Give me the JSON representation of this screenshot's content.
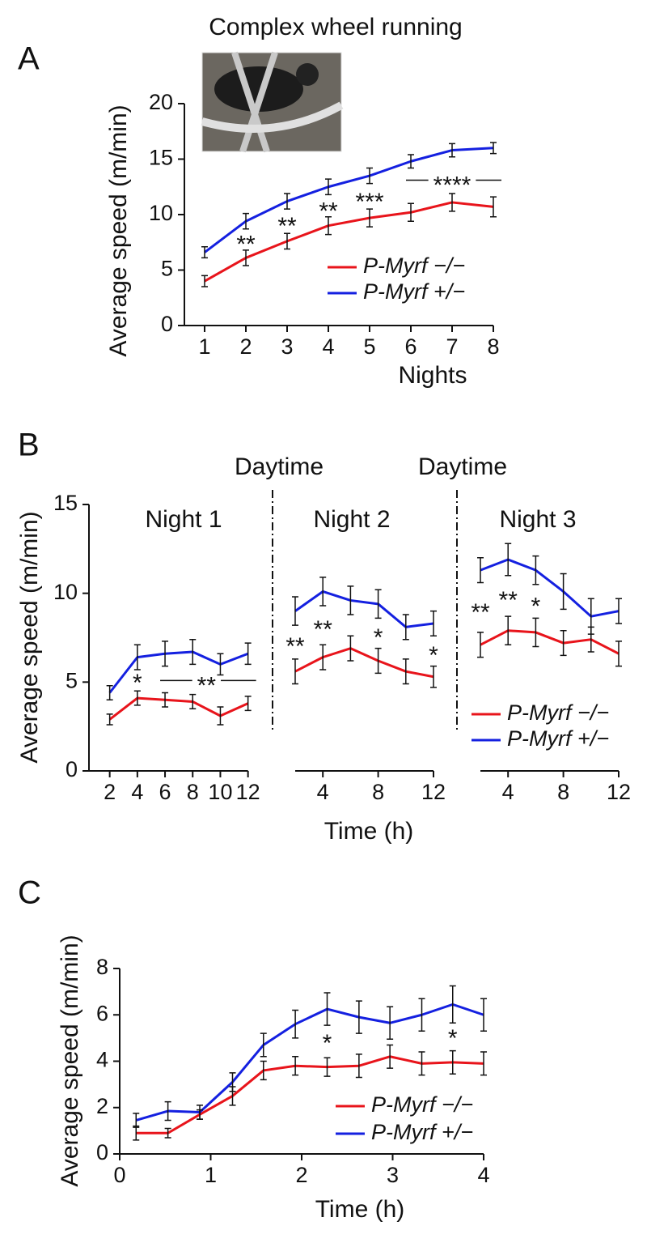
{
  "chart_data": [
    {
      "type": "line",
      "label": "A",
      "title": "Complex wheel running",
      "xlabel": "Nights",
      "ylabel": "Average speed (m/min)",
      "x": [
        1,
        2,
        3,
        4,
        5,
        6,
        7,
        8
      ],
      "xlim": [
        0.5,
        8
      ],
      "xticks": [
        1,
        2,
        3,
        4,
        5,
        6,
        7,
        8
      ],
      "ylim": [
        0,
        20
      ],
      "yticks": [
        0,
        5,
        10,
        15,
        20
      ],
      "series": [
        {
          "name": "P-Myrf −/−",
          "color": "#e8141b",
          "values": [
            4.0,
            6.1,
            7.6,
            9.0,
            9.7,
            10.2,
            11.1,
            10.7
          ],
          "errors": [
            0.5,
            0.7,
            0.7,
            0.8,
            0.8,
            0.8,
            0.8,
            0.9
          ]
        },
        {
          "name": "P-Myrf +/−",
          "color": "#1420e0",
          "values": [
            6.6,
            9.4,
            11.2,
            12.5,
            13.5,
            14.8,
            15.8,
            16.0
          ],
          "errors": [
            0.5,
            0.7,
            0.7,
            0.7,
            0.7,
            0.6,
            0.6,
            0.5
          ]
        }
      ],
      "annotations": [
        {
          "text": "**",
          "x": 2
        },
        {
          "text": "**",
          "x": 3
        },
        {
          "text": "**",
          "x": 4
        },
        {
          "text": "***",
          "x": 5
        },
        {
          "text": "****",
          "from": 6,
          "to": 8
        }
      ]
    },
    {
      "type": "line",
      "label": "B",
      "ylabel": "Average speed (m/min)",
      "xlabel": "Time (h)",
      "separators": [
        "Daytime",
        "Daytime"
      ],
      "ylim": [
        0,
        15
      ],
      "yticks": [
        0,
        5,
        10,
        15
      ],
      "series": [
        {
          "name": "P-Myrf −/−",
          "color": "#e8141b"
        },
        {
          "name": "P-Myrf +/−",
          "color": "#1420e0"
        }
      ],
      "panels": [
        {
          "title": "Night 1",
          "x": [
            2,
            4,
            6,
            8,
            10,
            12
          ],
          "xlim": [
            0.5,
            12
          ],
          "xticks": [
            2,
            4,
            6,
            8,
            10,
            12
          ],
          "series": [
            {
              "values": [
                2.9,
                4.1,
                4.0,
                3.9,
                3.1,
                3.8
              ],
              "errors": [
                0.3,
                0.4,
                0.4,
                0.4,
                0.5,
                0.4
              ]
            },
            {
              "values": [
                4.4,
                6.4,
                6.6,
                6.7,
                6.0,
                6.6
              ],
              "errors": [
                0.4,
                0.7,
                0.7,
                0.7,
                0.6,
                0.6
              ]
            }
          ],
          "annotations": [
            {
              "text": "*",
              "x": 4
            },
            {
              "text": "**",
              "from": 6,
              "to": 12
            }
          ]
        },
        {
          "title": "Night 2",
          "x": [
            2,
            4,
            6,
            8,
            10,
            12
          ],
          "xlim": [
            2,
            12
          ],
          "xticks": [
            4,
            8,
            12
          ],
          "series": [
            {
              "values": [
                5.6,
                6.4,
                6.9,
                6.2,
                5.6,
                5.3
              ],
              "errors": [
                0.7,
                0.7,
                0.7,
                0.7,
                0.7,
                0.6
              ]
            },
            {
              "values": [
                9.0,
                10.1,
                9.6,
                9.4,
                8.1,
                8.3
              ],
              "errors": [
                0.8,
                0.8,
                0.8,
                0.8,
                0.7,
                0.7
              ]
            }
          ],
          "annotations": [
            {
              "text": "**",
              "x": 2
            },
            {
              "text": "**",
              "x": 4
            },
            {
              "text": "*",
              "x": 8
            },
            {
              "text": "*",
              "x": 12
            }
          ]
        },
        {
          "title": "Night 3",
          "x": [
            2,
            4,
            6,
            8,
            10,
            12
          ],
          "xlim": [
            2,
            12
          ],
          "xticks": [
            4,
            8,
            12
          ],
          "series": [
            {
              "values": [
                7.1,
                7.9,
                7.8,
                7.2,
                7.4,
                6.6
              ],
              "errors": [
                0.7,
                0.8,
                0.8,
                0.7,
                0.7,
                0.7
              ]
            },
            {
              "values": [
                11.3,
                11.9,
                11.3,
                10.1,
                8.7,
                9.0
              ],
              "errors": [
                0.7,
                0.9,
                0.8,
                1.0,
                1.0,
                0.7
              ]
            }
          ],
          "annotations": [
            {
              "text": "**",
              "x": 2
            },
            {
              "text": "**",
              "x": 4
            },
            {
              "text": "*",
              "x": 6
            }
          ]
        }
      ]
    },
    {
      "type": "line",
      "label": "C",
      "xlabel": "Time (h)",
      "ylabel": "Average speed (m/min)",
      "x": [
        0.18,
        0.53,
        0.88,
        1.24,
        1.58,
        1.93,
        2.28,
        2.63,
        2.97,
        3.32,
        3.66,
        4.0
      ],
      "xlim": [
        0,
        4
      ],
      "xticks": [
        0,
        1,
        2,
        3,
        4
      ],
      "ylim": [
        0,
        8
      ],
      "yticks": [
        0,
        2,
        4,
        6,
        8
      ],
      "series": [
        {
          "name": "P-Myrf −/−",
          "color": "#e8141b",
          "values": [
            0.9,
            0.9,
            1.7,
            2.5,
            3.6,
            3.8,
            3.75,
            3.8,
            4.2,
            3.9,
            3.95,
            3.9
          ],
          "errors": [
            0.3,
            0.2,
            0.2,
            0.4,
            0.4,
            0.4,
            0.4,
            0.5,
            0.5,
            0.5,
            0.5,
            0.5
          ]
        },
        {
          "name": "P-Myrf +/−",
          "color": "#1420e0",
          "values": [
            1.45,
            1.85,
            1.8,
            3.1,
            4.7,
            5.6,
            6.25,
            5.9,
            5.65,
            6.0,
            6.45,
            6.0
          ],
          "errors": [
            0.3,
            0.4,
            0.3,
            0.4,
            0.5,
            0.6,
            0.7,
            0.7,
            0.7,
            0.7,
            0.8,
            0.7
          ]
        }
      ],
      "annotations": [
        {
          "text": "*",
          "x": 2.28
        },
        {
          "text": "*",
          "x": 3.66
        }
      ]
    }
  ]
}
